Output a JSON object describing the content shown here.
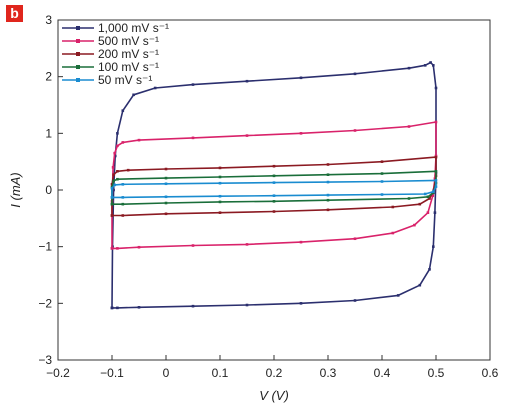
{
  "panel_label": "b",
  "chart_data": {
    "type": "line",
    "title": "",
    "xlabel": "V (V)",
    "ylabel": "I (mA)",
    "xlim": [
      -0.2,
      0.6
    ],
    "ylim": [
      -3,
      3
    ],
    "xticks": [
      "−0.2",
      "−0.1",
      "0",
      "0.1",
      "0.2",
      "0.3",
      "0.4",
      "0.5",
      "0.6"
    ],
    "yticks": [
      "−3",
      "−2",
      "−1",
      "0",
      "1",
      "2",
      "3"
    ],
    "grid": false,
    "legend_position": "top-left",
    "series": [
      {
        "name": "1,000 mV s⁻¹",
        "color": "#2b2f6e",
        "x": [
          -0.1,
          -0.099,
          -0.097,
          -0.094,
          -0.09,
          -0.08,
          -0.06,
          -0.02,
          0.05,
          0.15,
          0.25,
          0.35,
          0.45,
          0.48,
          0.49,
          0.495,
          0.5,
          0.5,
          0.498,
          0.495,
          0.488,
          0.47,
          0.43,
          0.35,
          0.25,
          0.15,
          0.05,
          -0.05,
          -0.09,
          -0.1,
          -0.1
        ],
        "y": [
          -2.08,
          -1.0,
          0.0,
          0.6,
          1.0,
          1.4,
          1.68,
          1.8,
          1.86,
          1.92,
          1.98,
          2.05,
          2.15,
          2.2,
          2.25,
          2.2,
          1.8,
          0.3,
          -0.4,
          -1.0,
          -1.4,
          -1.68,
          -1.86,
          -1.95,
          -2.0,
          -2.03,
          -2.05,
          -2.07,
          -2.08,
          -2.08,
          -2.08
        ]
      },
      {
        "name": "500 mV s⁻¹",
        "color": "#d9226a",
        "x": [
          -0.1,
          -0.1,
          -0.098,
          -0.095,
          -0.09,
          -0.08,
          -0.05,
          0.05,
          0.15,
          0.25,
          0.35,
          0.45,
          0.5,
          0.5,
          0.498,
          0.494,
          0.485,
          0.46,
          0.42,
          0.35,
          0.25,
          0.15,
          0.05,
          -0.05,
          -0.09,
          -0.1
        ],
        "y": [
          -1.03,
          -0.2,
          0.4,
          0.65,
          0.78,
          0.84,
          0.88,
          0.92,
          0.96,
          1.0,
          1.05,
          1.12,
          1.2,
          0.6,
          0.2,
          -0.1,
          -0.4,
          -0.62,
          -0.76,
          -0.86,
          -0.92,
          -0.96,
          -0.98,
          -1.01,
          -1.03,
          -1.03
        ]
      },
      {
        "name": "200 mV s⁻¹",
        "color": "#8b1a22",
        "x": [
          -0.1,
          -0.1,
          -0.097,
          -0.09,
          -0.07,
          0.0,
          0.1,
          0.2,
          0.3,
          0.4,
          0.5,
          0.5,
          0.496,
          0.488,
          0.47,
          0.42,
          0.3,
          0.2,
          0.1,
          0.0,
          -0.08,
          -0.1
        ],
        "y": [
          -0.45,
          0.1,
          0.27,
          0.33,
          0.35,
          0.37,
          0.39,
          0.42,
          0.45,
          0.5,
          0.58,
          0.25,
          0.0,
          -0.15,
          -0.25,
          -0.3,
          -0.35,
          -0.38,
          -0.4,
          -0.42,
          -0.45,
          -0.45
        ]
      },
      {
        "name": "100 mV s⁻¹",
        "color": "#1a6e3a",
        "x": [
          -0.1,
          -0.1,
          -0.097,
          -0.09,
          0.0,
          0.1,
          0.2,
          0.3,
          0.4,
          0.5,
          0.5,
          0.495,
          0.485,
          0.45,
          0.3,
          0.2,
          0.1,
          0.0,
          -0.08,
          -0.1
        ],
        "y": [
          -0.25,
          0.05,
          0.16,
          0.19,
          0.21,
          0.23,
          0.25,
          0.27,
          0.29,
          0.33,
          0.12,
          -0.05,
          -0.12,
          -0.15,
          -0.18,
          -0.2,
          -0.21,
          -0.23,
          -0.25,
          -0.25
        ]
      },
      {
        "name": "50 mV s⁻¹",
        "color": "#1a8cd0",
        "x": [
          -0.1,
          -0.1,
          -0.095,
          -0.08,
          0.0,
          0.1,
          0.2,
          0.3,
          0.4,
          0.5,
          0.5,
          0.495,
          0.48,
          0.4,
          0.3,
          0.2,
          0.1,
          0.0,
          -0.08,
          -0.1
        ],
        "y": [
          -0.13,
          0.03,
          0.09,
          0.1,
          0.11,
          0.12,
          0.13,
          0.14,
          0.15,
          0.17,
          0.06,
          -0.03,
          -0.07,
          -0.08,
          -0.09,
          -0.1,
          -0.11,
          -0.12,
          -0.13,
          -0.13
        ]
      }
    ]
  }
}
